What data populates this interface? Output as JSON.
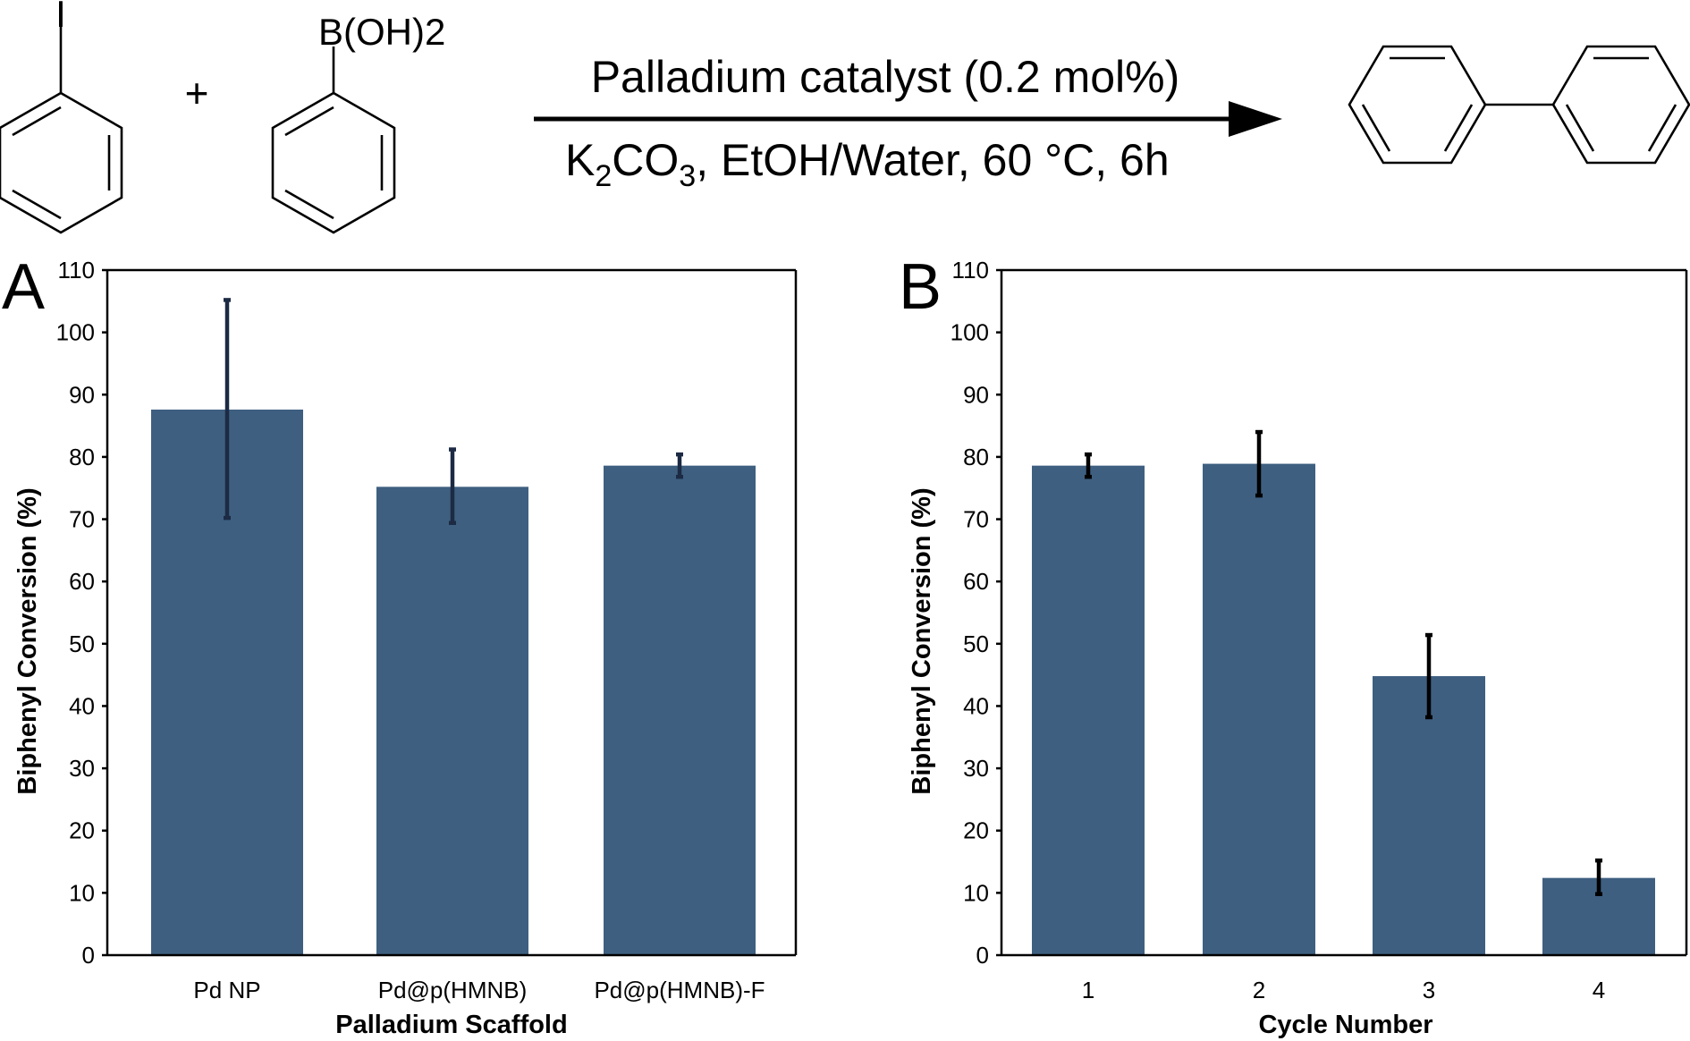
{
  "scheme": {
    "reactant1_label": "I",
    "plus": "+",
    "reactant2_label": "B(OH)2",
    "condition_top": "Palladium catalyst (0.2 mol%)",
    "condition_bottom": {
      "k": "K",
      "k_sub": "2",
      "co": "CO",
      "co_sub": "3",
      "rest": ", EtOH/Water, 60 °C, 6h"
    },
    "product": "biphenyl"
  },
  "colors": {
    "bar": "#3e5f80",
    "error_bar_a": "#1c2a44",
    "error_bar_b": "#000000",
    "axis": "#000000"
  },
  "chart_data": [
    {
      "panel": "A",
      "type": "bar",
      "categories": [
        "Pd NP",
        "Pd@p(HMNB)",
        "Pd@p(HMNB)-F"
      ],
      "values": [
        87.6,
        75.2,
        78.6
      ],
      "error_low": [
        70.2,
        69.4,
        76.8
      ],
      "error_high": [
        105.2,
        81.2,
        80.4
      ],
      "xlabel": "Palladium Scaffold",
      "ylabel": "Biphenyl Conversion (%)",
      "ylim": [
        0,
        110
      ],
      "yticks": [
        "0",
        "10",
        "20",
        "30",
        "40",
        "50",
        "60",
        "70",
        "80",
        "90",
        "100",
        "110"
      ],
      "grid": false,
      "legend": "none"
    },
    {
      "panel": "B",
      "type": "bar",
      "categories": [
        "1",
        "2",
        "3",
        "4"
      ],
      "values": [
        78.6,
        78.9,
        44.8,
        12.4
      ],
      "error_low": [
        76.8,
        73.8,
        38.2,
        9.8
      ],
      "error_high": [
        80.4,
        84.0,
        51.4,
        15.2
      ],
      "xlabel": "Cycle Number",
      "ylabel": "Biphenyl Conversion (%)",
      "ylim": [
        0,
        110
      ],
      "yticks": [
        "0",
        "10",
        "20",
        "30",
        "40",
        "50",
        "60",
        "70",
        "80",
        "90",
        "100",
        "110"
      ],
      "grid": false,
      "legend": "none"
    }
  ]
}
